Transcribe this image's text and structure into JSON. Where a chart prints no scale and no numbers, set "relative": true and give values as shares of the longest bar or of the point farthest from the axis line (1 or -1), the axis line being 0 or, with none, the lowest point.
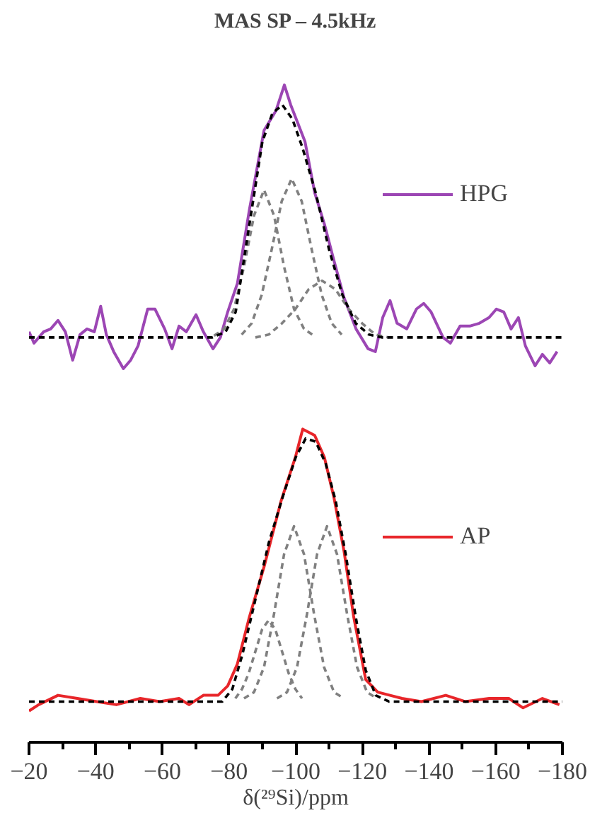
{
  "chart_data": [
    {
      "type": "line",
      "title": "MAS SP – 4.5kHz",
      "relative": true,
      "xlim": [
        -20,
        -180
      ],
      "tick_labels": false,
      "legend": "right",
      "grid": false,
      "series": [
        {
          "name": "HPG",
          "color": "#9c46b4",
          "line_style": "solid",
          "x": [
            -20,
            -21.5,
            -24.4,
            -26.5,
            -28.7,
            -30.9,
            -33.1,
            -35.3,
            -37.4,
            -39.6,
            -41.5,
            -43.2,
            -45.4,
            -48.3,
            -50.5,
            -52.7,
            -55.6,
            -57.8,
            -60.7,
            -62.9,
            -65.0,
            -67.2,
            -70.1,
            -72.3,
            -75.2,
            -77.4,
            -79.6,
            -82.5,
            -86.1,
            -90.5,
            -94.1,
            -96.6,
            -98.5,
            -102.8,
            -105.7,
            -108.6,
            -111.5,
            -114.5,
            -118.1,
            -121.7,
            -123.9,
            -126.1,
            -128.3,
            -130.4,
            -133.3,
            -136.2,
            -138.4,
            -140.6,
            -144.2,
            -146.4,
            -149.3,
            -152.2,
            -155.1,
            -158.0,
            -160.2,
            -162.4,
            -164.6,
            -166.8,
            -168.9,
            -171.8,
            -174.0,
            -176.2,
            -178.4
          ],
          "values": [
            0.13,
            0.09,
            0.13,
            0.14,
            0.17,
            0.13,
            0.03,
            0.12,
            0.14,
            0.13,
            0.22,
            0.12,
            0.06,
            0.0,
            0.03,
            0.08,
            0.21,
            0.21,
            0.14,
            0.07,
            0.15,
            0.13,
            0.19,
            0.13,
            0.07,
            0.11,
            0.2,
            0.3,
            0.56,
            0.84,
            0.91,
            1.0,
            0.93,
            0.8,
            0.62,
            0.51,
            0.38,
            0.25,
            0.14,
            0.07,
            0.06,
            0.18,
            0.24,
            0.16,
            0.14,
            0.21,
            0.23,
            0.2,
            0.11,
            0.09,
            0.15,
            0.15,
            0.16,
            0.18,
            0.21,
            0.2,
            0.14,
            0.18,
            0.08,
            0.01,
            0.05,
            0.02,
            0.06
          ]
        },
        {
          "color": "#808080",
          "line_style": "dashed",
          "x": [
            -75.5,
            -78.5,
            -81.5,
            -84.5,
            -87.5,
            -90.5,
            -93.5,
            -96.5,
            -99.5,
            -102.5,
            -105.5
          ],
          "values": [
            0.116,
            0.14,
            0.21,
            0.36,
            0.54,
            0.63,
            0.54,
            0.36,
            0.21,
            0.14,
            0.116
          ]
        },
        {
          "color": "#808080",
          "line_style": "dashed",
          "x": [
            -83.8,
            -86.8,
            -89.8,
            -92.8,
            -95.8,
            -98.8,
            -101.8,
            -104.8,
            -107.8,
            -110.8,
            -113.8
          ],
          "values": [
            0.12,
            0.16,
            0.26,
            0.42,
            0.59,
            0.67,
            0.59,
            0.42,
            0.26,
            0.16,
            0.12
          ]
        },
        {
          "color": "#808080",
          "line_style": "dashed",
          "x": [
            -87.9,
            -91.9,
            -95.9,
            -99.9,
            -103.9,
            -107.9,
            -111.9,
            -115.9,
            -119.9,
            -123.9,
            -127.9
          ],
          "values": [
            0.11,
            0.12,
            0.16,
            0.21,
            0.28,
            0.31,
            0.28,
            0.21,
            0.16,
            0.12,
            0.11
          ]
        },
        {
          "color": "#000000",
          "line_style": "dashed",
          "x": [
            -20,
            -75,
            -79,
            -82,
            -86,
            -90,
            -93,
            -96,
            -99,
            -102,
            -106,
            -110,
            -114,
            -118,
            -122,
            -126,
            -180
          ],
          "values": [
            0.11,
            0.11,
            0.13,
            0.2,
            0.5,
            0.8,
            0.9,
            0.93,
            0.88,
            0.78,
            0.62,
            0.42,
            0.26,
            0.16,
            0.12,
            0.11,
            0.11
          ]
        }
      ]
    },
    {
      "type": "line",
      "relative": true,
      "xlim": [
        -20,
        -180
      ],
      "xlabel": "δ(²⁹Si)/ppm",
      "legend": "right",
      "grid": false,
      "xticks": [
        -20,
        {
          "value": -30,
          "label": null
        },
        -40,
        {
          "value": -50,
          "label": null
        },
        -60,
        {
          "value": -70,
          "label": null
        },
        -80,
        {
          "value": -90,
          "label": null
        },
        -100,
        {
          "value": -110,
          "label": null
        },
        -120,
        {
          "value": -130,
          "label": null
        },
        -140,
        {
          "value": -150,
          "label": null
        },
        -160,
        {
          "value": -170,
          "label": null
        },
        -180
      ],
      "series": [
        {
          "name": "AP",
          "color": "#e8262a",
          "line_style": "solid",
          "x": [
            -20,
            -22.9,
            -28.7,
            -34.5,
            -40.3,
            -46.2,
            -53.4,
            -59.2,
            -65.0,
            -68.0,
            -72.3,
            -76.7,
            -79.6,
            -82.5,
            -86.1,
            -90.5,
            -95.6,
            -99.9,
            -102.1,
            -105.7,
            -108.6,
            -111.5,
            -114.5,
            -117.4,
            -121.0,
            -124.6,
            -128.3,
            -131.9,
            -137.7,
            -145.0,
            -150.8,
            -158.0,
            -163.9,
            -168.2,
            -174.0,
            -179.1
          ],
          "values": [
            0.1,
            0.12,
            0.15,
            0.14,
            0.13,
            0.12,
            0.14,
            0.13,
            0.14,
            0.12,
            0.15,
            0.15,
            0.18,
            0.25,
            0.4,
            0.56,
            0.77,
            0.91,
            1.0,
            0.98,
            0.91,
            0.78,
            0.61,
            0.4,
            0.2,
            0.16,
            0.15,
            0.14,
            0.13,
            0.15,
            0.13,
            0.14,
            0.14,
            0.11,
            0.14,
            0.12
          ]
        },
        {
          "color": "#808080",
          "line_style": "dashed",
          "x": [
            -81.9,
            -83.9,
            -85.9,
            -87.9,
            -89.9,
            -91.9,
            -93.9,
            -95.9,
            -97.9,
            -99.9,
            -101.9
          ],
          "values": [
            0.14,
            0.17,
            0.22,
            0.29,
            0.36,
            0.39,
            0.36,
            0.29,
            0.22,
            0.17,
            0.14
          ]
        },
        {
          "color": "#808080",
          "line_style": "dashed",
          "x": [
            -84.5,
            -87.5,
            -90.5,
            -93.5,
            -96.5,
            -99.5,
            -102.5,
            -105.5,
            -108.5,
            -111.5,
            -114.5
          ],
          "values": [
            0.14,
            0.16,
            0.24,
            0.41,
            0.6,
            0.69,
            0.6,
            0.41,
            0.24,
            0.16,
            0.14
          ]
        },
        {
          "color": "#808080",
          "line_style": "dashed",
          "x": [
            -94.4,
            -97.4,
            -100.4,
            -103.4,
            -106.4,
            -109.4,
            -112.4,
            -115.4,
            -118.4,
            -121.4,
            -124.4
          ],
          "values": [
            0.14,
            0.16,
            0.24,
            0.41,
            0.6,
            0.69,
            0.6,
            0.41,
            0.24,
            0.16,
            0.14
          ]
        },
        {
          "color": "#000000",
          "line_style": "dashed",
          "x": [
            -20,
            -78,
            -81,
            -84,
            -88,
            -92,
            -96,
            -100,
            -103,
            -106,
            -109,
            -112,
            -115,
            -118,
            -121,
            -124,
            -128,
            -180
          ],
          "values": [
            0.13,
            0.13,
            0.17,
            0.28,
            0.46,
            0.64,
            0.78,
            0.91,
            0.97,
            0.96,
            0.89,
            0.77,
            0.6,
            0.4,
            0.23,
            0.15,
            0.13,
            0.13
          ]
        }
      ]
    }
  ]
}
